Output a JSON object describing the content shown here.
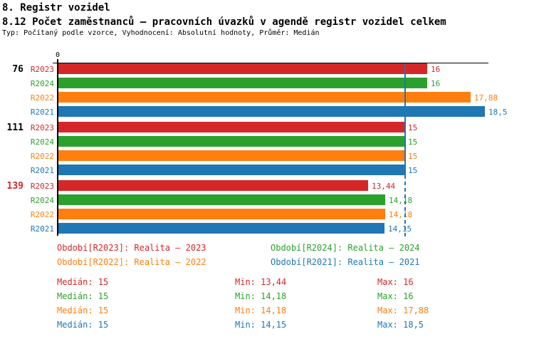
{
  "header": {
    "title1": "8. Registr vozidel",
    "title2": "8.12 Počet zaměstnanců – pracovních úvazků v agendě registr vozidel celkem",
    "subtitle": "Typ: Počítaný podle vzorce, Vyhodnocení: Absolutní hodnoty, Průměr: Medián"
  },
  "chart_data": {
    "type": "bar",
    "orientation": "horizontal",
    "zero_label": "0",
    "xlim": [
      0,
      18.7
    ],
    "axis_color": "#000000",
    "reference_line": {
      "value": 15,
      "color": "#1f77b4"
    },
    "series_order": [
      "R2023",
      "R2024",
      "R2022",
      "R2021"
    ],
    "series_colors": {
      "R2023": "#d62728",
      "R2024": "#2ca02c",
      "R2022": "#ff7f0e",
      "R2021": "#1f77b4"
    },
    "groups": [
      {
        "label": "76",
        "label_color": "#000000",
        "bars": [
          {
            "series": "R2023",
            "value": 16,
            "display": "16"
          },
          {
            "series": "R2024",
            "value": 16,
            "display": "16"
          },
          {
            "series": "R2022",
            "value": 17.88,
            "display": "17,88"
          },
          {
            "series": "R2021",
            "value": 18.5,
            "display": "18,5"
          }
        ]
      },
      {
        "label": "111",
        "label_color": "#000000",
        "bars": [
          {
            "series": "R2023",
            "value": 15,
            "display": "15"
          },
          {
            "series": "R2024",
            "value": 15,
            "display": "15"
          },
          {
            "series": "R2022",
            "value": 15,
            "display": "15"
          },
          {
            "series": "R2021",
            "value": 15,
            "display": "15"
          }
        ]
      },
      {
        "label": "139",
        "label_color": "#d62728",
        "bars": [
          {
            "series": "R2023",
            "value": 13.44,
            "display": "13,44"
          },
          {
            "series": "R2024",
            "value": 14.18,
            "display": "14,18"
          },
          {
            "series": "R2022",
            "value": 14.18,
            "display": "14,18"
          },
          {
            "series": "R2021",
            "value": 14.15,
            "display": "14,15"
          }
        ]
      }
    ]
  },
  "legend": {
    "items": [
      {
        "series": "R2023",
        "text": "Období[R2023]: Realita – 2023",
        "color": "#d62728"
      },
      {
        "series": "R2024",
        "text": "Období[R2024]: Realita – 2024",
        "color": "#2ca02c"
      },
      {
        "series": "R2022",
        "text": "Období[R2022]: Realita – 2022",
        "color": "#ff7f0e"
      },
      {
        "series": "R2021",
        "text": "Období[R2021]: Realita – 2021",
        "color": "#1f77b4"
      }
    ]
  },
  "stats": {
    "rows": [
      {
        "series": "R2023",
        "median": "Medián: 15",
        "min": "Min: 13,44",
        "max": "Max: 16",
        "color": "#d62728"
      },
      {
        "series": "R2024",
        "median": "Medián: 15",
        "min": "Min: 14,18",
        "max": "Max: 16",
        "color": "#2ca02c"
      },
      {
        "series": "R2022",
        "median": "Medián: 15",
        "min": "Min: 14,18",
        "max": "Max: 17,88",
        "color": "#ff7f0e"
      },
      {
        "series": "R2021",
        "median": "Medián: 15",
        "min": "Min: 14,15",
        "max": "Max: 18,5",
        "color": "#1f77b4"
      }
    ]
  }
}
